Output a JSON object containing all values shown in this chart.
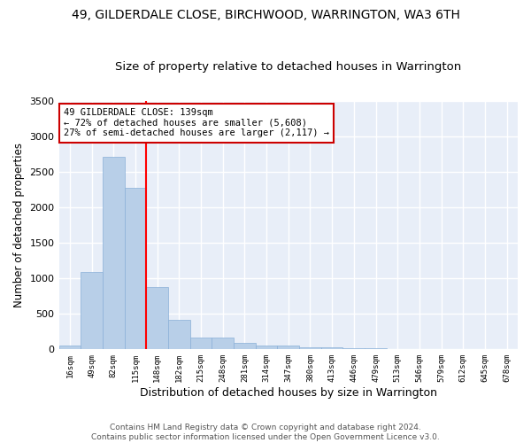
{
  "title": "49, GILDERDALE CLOSE, BIRCHWOOD, WARRINGTON, WA3 6TH",
  "subtitle": "Size of property relative to detached houses in Warrington",
  "xlabel": "Distribution of detached houses by size in Warrington",
  "ylabel": "Number of detached properties",
  "categories": [
    "16sqm",
    "49sqm",
    "82sqm",
    "115sqm",
    "148sqm",
    "182sqm",
    "215sqm",
    "248sqm",
    "281sqm",
    "314sqm",
    "347sqm",
    "380sqm",
    "413sqm",
    "446sqm",
    "479sqm",
    "513sqm",
    "546sqm",
    "579sqm",
    "612sqm",
    "645sqm",
    "678sqm"
  ],
  "values": [
    50,
    1090,
    2710,
    2280,
    880,
    420,
    170,
    165,
    95,
    60,
    50,
    35,
    25,
    20,
    15,
    0,
    0,
    0,
    0,
    0,
    0
  ],
  "bar_color": "#b8cfe8",
  "bar_edge_color": "#8ab0d8",
  "background_color": "#e8eef8",
  "grid_color": "#ffffff",
  "red_line_x": 3.5,
  "annotation_line1": "49 GILDERDALE CLOSE: 139sqm",
  "annotation_line2": "← 72% of detached houses are smaller (5,608)",
  "annotation_line3": "27% of semi-detached houses are larger (2,117) →",
  "annotation_box_color": "#ffffff",
  "annotation_box_edge_color": "#cc0000",
  "footer_text": "Contains HM Land Registry data © Crown copyright and database right 2024.\nContains public sector information licensed under the Open Government Licence v3.0.",
  "ylim": [
    0,
    3500
  ],
  "title_fontsize": 10,
  "subtitle_fontsize": 9.5,
  "ylabel_fontsize": 8.5,
  "xlabel_fontsize": 9
}
